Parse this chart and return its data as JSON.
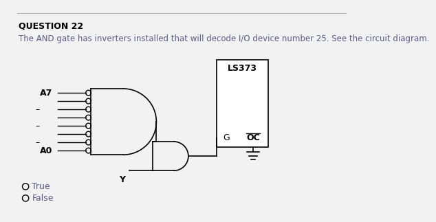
{
  "title": "QUESTION 22",
  "description": "The AND gate has inverters installed that will decode I/O device number 25. See the circuit diagram.",
  "bg_color": "#f2f2f2",
  "text_color": "#000000",
  "desc_color": "#5a5a8a",
  "label_A7": "A7",
  "label_A0": "A0",
  "label_Y": "Y",
  "label_G": "G",
  "label_OC": "OC",
  "label_LS373": "LS373",
  "true_label": "True",
  "false_label": "False",
  "fig_width": 6.56,
  "fig_height": 3.94,
  "n_inputs": 8
}
